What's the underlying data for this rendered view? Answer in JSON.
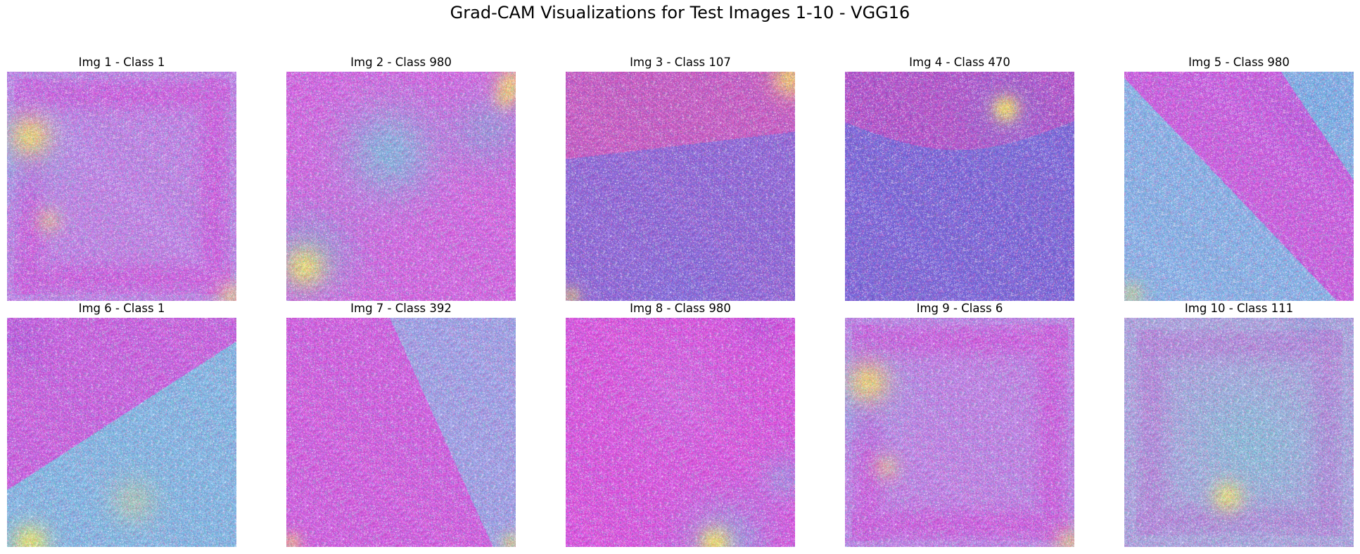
{
  "figure": {
    "title": "Grad-CAM Visualizations for Test Images 1-10 - VGG16"
  },
  "panels": [
    {
      "title": "Img 1 - Class 1",
      "pattern": "square-frame",
      "colors": {
        "base": "#c38ae6",
        "dominant": "#e62fd8",
        "accent": "#ffef52",
        "cool": "#52e6e6"
      }
    },
    {
      "title": "Img 2 - Class 980",
      "pattern": "cyan-blobs",
      "colors": {
        "base": "#c38ae6",
        "dominant": "#e62fd8",
        "accent": "#ffef52",
        "cool": "#3ee6d2"
      }
    },
    {
      "title": "Img 3 - Class 107",
      "pattern": "diagonal-blue-band",
      "colors": {
        "base": "#a06ee6",
        "dominant": "#e84fa8",
        "accent": "#ffef52",
        "cool": "#5a78e6"
      }
    },
    {
      "title": "Img 4 - Class 470",
      "pattern": "blue-lower",
      "colors": {
        "base": "#7a6ee0",
        "dominant": "#e03fb8",
        "accent": "#ffef52",
        "cool": "#4a9ae6"
      }
    },
    {
      "title": "Img 5 - Class 980",
      "pattern": "magenta-diagonal",
      "colors": {
        "base": "#b38ae6",
        "dominant": "#e62fd8",
        "accent": "#ffef52",
        "cool": "#52e6e6"
      }
    },
    {
      "title": "Img 6 - Class 1",
      "pattern": "cyan-lower-right",
      "colors": {
        "base": "#b38ae6",
        "dominant": "#e62fd8",
        "accent": "#ffef52",
        "cool": "#52e6e0"
      }
    },
    {
      "title": "Img 7 - Class 392",
      "pattern": "magenta-left",
      "colors": {
        "base": "#c38ae6",
        "dominant": "#e62fd8",
        "accent": "#ffef52",
        "cool": "#52e6e6"
      }
    },
    {
      "title": "Img 8 - Class 980",
      "pattern": "magenta-full",
      "colors": {
        "base": "#c38ae6",
        "dominant": "#e62fd8",
        "accent": "#ffef52",
        "cool": "#52e6e6"
      }
    },
    {
      "title": "Img 9 - Class 6",
      "pattern": "square-frame",
      "colors": {
        "base": "#c38ae6",
        "dominant": "#e62fd8",
        "accent": "#ffef52",
        "cool": "#52e6e6"
      }
    },
    {
      "title": "Img 10 - Class 111",
      "pattern": "pale-cyan",
      "colors": {
        "base": "#c9a0e6",
        "dominant": "#e62fd8",
        "accent": "#ffef52",
        "cool": "#52e6d0"
      }
    }
  ]
}
